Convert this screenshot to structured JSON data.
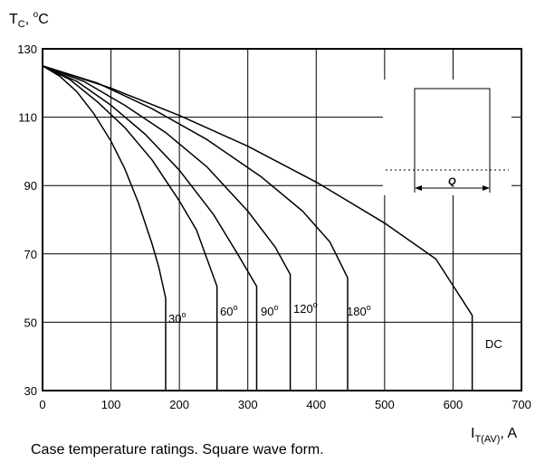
{
  "chart_data": {
    "type": "line",
    "title": "",
    "caption": "Case temperature ratings. Square wave form.",
    "ylabel": {
      "main": "T",
      "sub": "C",
      "sep": ", ",
      "deg": "o",
      "unit": "C"
    },
    "xlabel": {
      "main": "I",
      "sub": "T(AV)",
      "unit": ", A"
    },
    "xlim": [
      0,
      700
    ],
    "ylim": [
      30,
      130
    ],
    "xticks": [
      0,
      100,
      200,
      300,
      400,
      500,
      600,
      700
    ],
    "yticks": [
      30,
      50,
      70,
      90,
      110,
      130
    ],
    "grid": true,
    "series": [
      {
        "name": "30",
        "label": {
          "text": "30",
          "deg": "o"
        },
        "x": [
          0,
          25,
          50,
          75,
          100,
          120,
          140,
          160,
          170,
          180,
          180
        ],
        "y": [
          125,
          122,
          117.5,
          111,
          103,
          95,
          85,
          73,
          66,
          57,
          30
        ]
      },
      {
        "name": "60",
        "label": {
          "text": "60",
          "deg": "o"
        },
        "x": [
          0,
          40,
          80,
          120,
          160,
          200,
          225,
          255,
          255
        ],
        "y": [
          125,
          121,
          114.5,
          107,
          97.5,
          85.5,
          77,
          60.5,
          30
        ]
      },
      {
        "name": "90",
        "label": {
          "text": "90",
          "deg": "o"
        },
        "x": [
          0,
          50,
          100,
          150,
          200,
          250,
          285,
          313,
          313
        ],
        "y": [
          125,
          120.5,
          113.5,
          105,
          94.5,
          81.5,
          70,
          60.5,
          30
        ]
      },
      {
        "name": "120",
        "label": {
          "text": "120",
          "deg": "o"
        },
        "x": [
          0,
          60,
          120,
          180,
          240,
          300,
          340,
          362,
          362
        ],
        "y": [
          125,
          120.5,
          113.5,
          105.5,
          95.5,
          82.5,
          72,
          64,
          30
        ]
      },
      {
        "name": "180",
        "label": {
          "text": "180",
          "deg": "o"
        },
        "x": [
          0,
          80,
          160,
          240,
          320,
          380,
          420,
          446,
          446
        ],
        "y": [
          125,
          120,
          112.5,
          103.5,
          92.5,
          82.5,
          73.5,
          63,
          30
        ]
      },
      {
        "name": "DC",
        "label": {
          "text": "DC",
          "deg": ""
        },
        "x": [
          0,
          100,
          200,
          300,
          400,
          500,
          575,
          628,
          628
        ],
        "y": [
          125,
          118.5,
          110.5,
          101.5,
          91,
          79,
          68.5,
          52,
          30
        ]
      }
    ],
    "inset": {
      "description": "square pulse of width Q",
      "label": "Q"
    }
  }
}
